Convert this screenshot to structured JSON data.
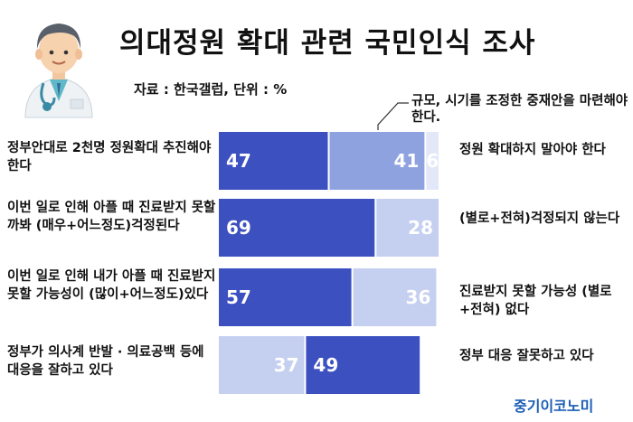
{
  "title": "의대정원 확대 관련 국민인식 조사",
  "source": "자료 : 한국갤럽, 단위 : %",
  "note": "규모, 시기를 조정한 중재안을 마련해야 한다.",
  "brand": "중기이코노미",
  "colors": {
    "strong": "#3c50c0",
    "medium": "#8fa2e0",
    "light": "#c5cff0",
    "lightest": "#e2e8f8"
  },
  "chart_data": {
    "type": "bar",
    "stacked": true,
    "orientation": "horizontal",
    "unit": "%",
    "rows": [
      {
        "question": "정부안대로 2천명 정원확대 추진해야 한다",
        "response": "정원 확대하지 말아야 한다",
        "segments": [
          {
            "value": 47,
            "color": "strong"
          },
          {
            "value": 41,
            "color": "medium"
          },
          {
            "value": 6,
            "color": "lightest"
          }
        ]
      },
      {
        "question": "이번 일로 인해 아플 때 진료받지 못할까봐 (매우+어느정도)걱정된다",
        "response": "(별로+전혀)걱정되지 않는다",
        "segments": [
          {
            "value": 69,
            "color": "strong"
          },
          {
            "value": 28,
            "color": "light"
          }
        ]
      },
      {
        "question": "이번 일로 인해 내가 아플 때 진료받지 못할 가능성이 (많이+어느정도)있다",
        "response": "진료받지 못할 가능성 (별로+전혀) 없다",
        "segments": [
          {
            "value": 57,
            "color": "strong"
          },
          {
            "value": 36,
            "color": "light"
          }
        ]
      },
      {
        "question": "정부가 의사계 반발 · 의료공백 등에 대응을 잘하고 있다",
        "response": "정부 대응 잘못하고 있다",
        "segments": [
          {
            "value": 37,
            "color": "light"
          },
          {
            "value": 49,
            "color": "strong"
          }
        ]
      }
    ]
  }
}
